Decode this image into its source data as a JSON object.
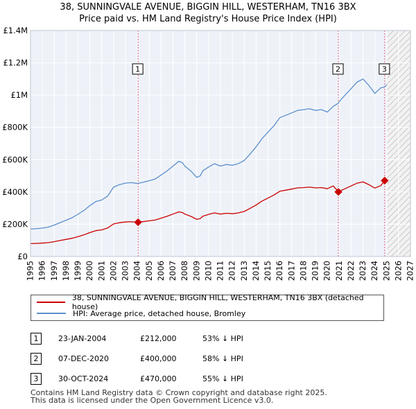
{
  "title_line1": "38, SUNNINGVALE AVENUE, BIGGIN HILL, WESTERHAM, TN16 3BX",
  "title_line2": "Price paid vs. HM Land Registry's House Price Index (HPI)",
  "colors": {
    "property": "#cc0000",
    "hpi": "#5b8fcc",
    "grid": "#dde3ec",
    "plot_bg": "#eef2f8",
    "marker_line": "#e06080"
  },
  "chart_data": {
    "type": "line",
    "xlim": [
      1995,
      2027
    ],
    "ylim": [
      0,
      1400000
    ],
    "x_ticks": [
      1995,
      1996,
      1997,
      1998,
      1999,
      2000,
      2001,
      2002,
      2003,
      2004,
      2005,
      2006,
      2007,
      2008,
      2009,
      2010,
      2011,
      2012,
      2013,
      2014,
      2015,
      2016,
      2017,
      2018,
      2019,
      2020,
      2021,
      2022,
      2023,
      2024,
      2025,
      2026,
      2027
    ],
    "y_ticks": [
      {
        "value": 0,
        "label": "£0"
      },
      {
        "value": 200000,
        "label": "£200K"
      },
      {
        "value": 400000,
        "label": "£400K"
      },
      {
        "value": 600000,
        "label": "£600K"
      },
      {
        "value": 800000,
        "label": "£800K"
      },
      {
        "value": 1000000,
        "label": "£1M"
      },
      {
        "value": 1200000,
        "label": "£1.2M"
      },
      {
        "value": 1400000,
        "label": "£1.4M"
      }
    ],
    "forecast_start": 2025.0,
    "series": [
      {
        "name": "HPI: Average price, detached house, Bromley",
        "key": "hpi",
        "x": [
          1995.0,
          1995.5,
          1996.0,
          1996.5,
          1997.0,
          1997.5,
          1998.0,
          1998.5,
          1999.0,
          1999.5,
          2000.0,
          2000.5,
          2001.0,
          2001.5,
          2002.0,
          2002.5,
          2003.0,
          2003.5,
          2004.0,
          2004.5,
          2005.0,
          2005.5,
          2006.0,
          2006.5,
          2007.0,
          2007.5,
          2007.8,
          2008.0,
          2008.5,
          2009.0,
          2009.3,
          2009.5,
          2010.0,
          2010.5,
          2011.0,
          2011.5,
          2012.0,
          2012.5,
          2013.0,
          2013.5,
          2014.0,
          2014.5,
          2015.0,
          2015.5,
          2016.0,
          2016.5,
          2017.0,
          2017.5,
          2018.0,
          2018.5,
          2019.0,
          2019.5,
          2020.0,
          2020.5,
          2020.93,
          2021.0,
          2021.5,
          2022.0,
          2022.5,
          2023.0,
          2023.5,
          2024.0,
          2024.5,
          2024.83,
          2025.0
        ],
        "values": [
          170000,
          172000,
          176000,
          182000,
          195000,
          210000,
          225000,
          240000,
          262000,
          285000,
          315000,
          340000,
          350000,
          375000,
          430000,
          445000,
          455000,
          458000,
          452000,
          460000,
          470000,
          480000,
          505000,
          530000,
          560000,
          590000,
          580000,
          560000,
          530000,
          490000,
          500000,
          530000,
          555000,
          575000,
          560000,
          570000,
          565000,
          575000,
          595000,
          635000,
          680000,
          730000,
          770000,
          810000,
          860000,
          875000,
          890000,
          905000,
          910000,
          915000,
          905000,
          910000,
          895000,
          930000,
          950000,
          960000,
          1000000,
          1040000,
          1080000,
          1100000,
          1060000,
          1010000,
          1045000,
          1050000,
          1065000
        ]
      },
      {
        "name": "38, SUNNINGVALE AVENUE, BIGGIN HILL, WESTERHAM, TN16 3BX (detached house)",
        "key": "property",
        "x": [
          1995.0,
          1995.5,
          1996.0,
          1996.5,
          1997.0,
          1997.5,
          1998.0,
          1998.5,
          1999.0,
          1999.5,
          2000.0,
          2000.5,
          2001.0,
          2001.5,
          2002.0,
          2002.5,
          2003.0,
          2003.5,
          2004.06,
          2004.5,
          2005.0,
          2005.5,
          2006.0,
          2006.5,
          2007.0,
          2007.5,
          2007.8,
          2008.0,
          2008.5,
          2009.0,
          2009.3,
          2009.5,
          2010.0,
          2010.5,
          2011.0,
          2011.5,
          2012.0,
          2012.5,
          2013.0,
          2013.5,
          2014.0,
          2014.5,
          2015.0,
          2015.5,
          2016.0,
          2016.5,
          2017.0,
          2017.5,
          2018.0,
          2018.5,
          2019.0,
          2019.5,
          2020.0,
          2020.5,
          2020.93,
          2021.0,
          2021.5,
          2022.0,
          2022.5,
          2023.0,
          2023.5,
          2024.0,
          2024.5,
          2024.83,
          2025.0
        ],
        "values": [
          80000,
          81000,
          83000,
          86000,
          92000,
          99000,
          106000,
          113000,
          123000,
          134000,
          148000,
          160000,
          165000,
          177000,
          202000,
          209000,
          214000,
          215000,
          212000,
          216000,
          221000,
          226000,
          237000,
          249000,
          263000,
          277000,
          272000,
          263000,
          249000,
          230000,
          235000,
          249000,
          261000,
          270000,
          263000,
          268000,
          265000,
          270000,
          279000,
          298000,
          319000,
          343000,
          362000,
          381000,
          404000,
          411000,
          418000,
          425000,
          427000,
          430000,
          425000,
          427000,
          420000,
          437000,
          400000,
          404000,
          420000,
          437000,
          454000,
          462000,
          445000,
          424000,
          439000,
          470000,
          476000
        ]
      }
    ],
    "sales": [
      {
        "num": "1",
        "x": 2004.06,
        "value": 212000
      },
      {
        "num": "2",
        "x": 2020.93,
        "value": 400000
      },
      {
        "num": "3",
        "x": 2024.83,
        "value": 470000
      }
    ]
  },
  "legend": {
    "property_label": "38, SUNNINGVALE AVENUE, BIGGIN HILL, WESTERHAM, TN16 3BX (detached house)",
    "hpi_label": "HPI: Average price, detached house, Bromley"
  },
  "sales_table": [
    {
      "num": "1",
      "date": "23-JAN-2004",
      "price": "£212,000",
      "hpi": "53% ↓ HPI"
    },
    {
      "num": "2",
      "date": "07-DEC-2020",
      "price": "£400,000",
      "hpi": "58% ↓ HPI"
    },
    {
      "num": "3",
      "date": "30-OCT-2024",
      "price": "£470,000",
      "hpi": "55% ↓ HPI"
    }
  ],
  "footer_line1": "Contains HM Land Registry data © Crown copyright and database right 2025.",
  "footer_line2": "This data is licensed under the Open Government Licence v3.0."
}
